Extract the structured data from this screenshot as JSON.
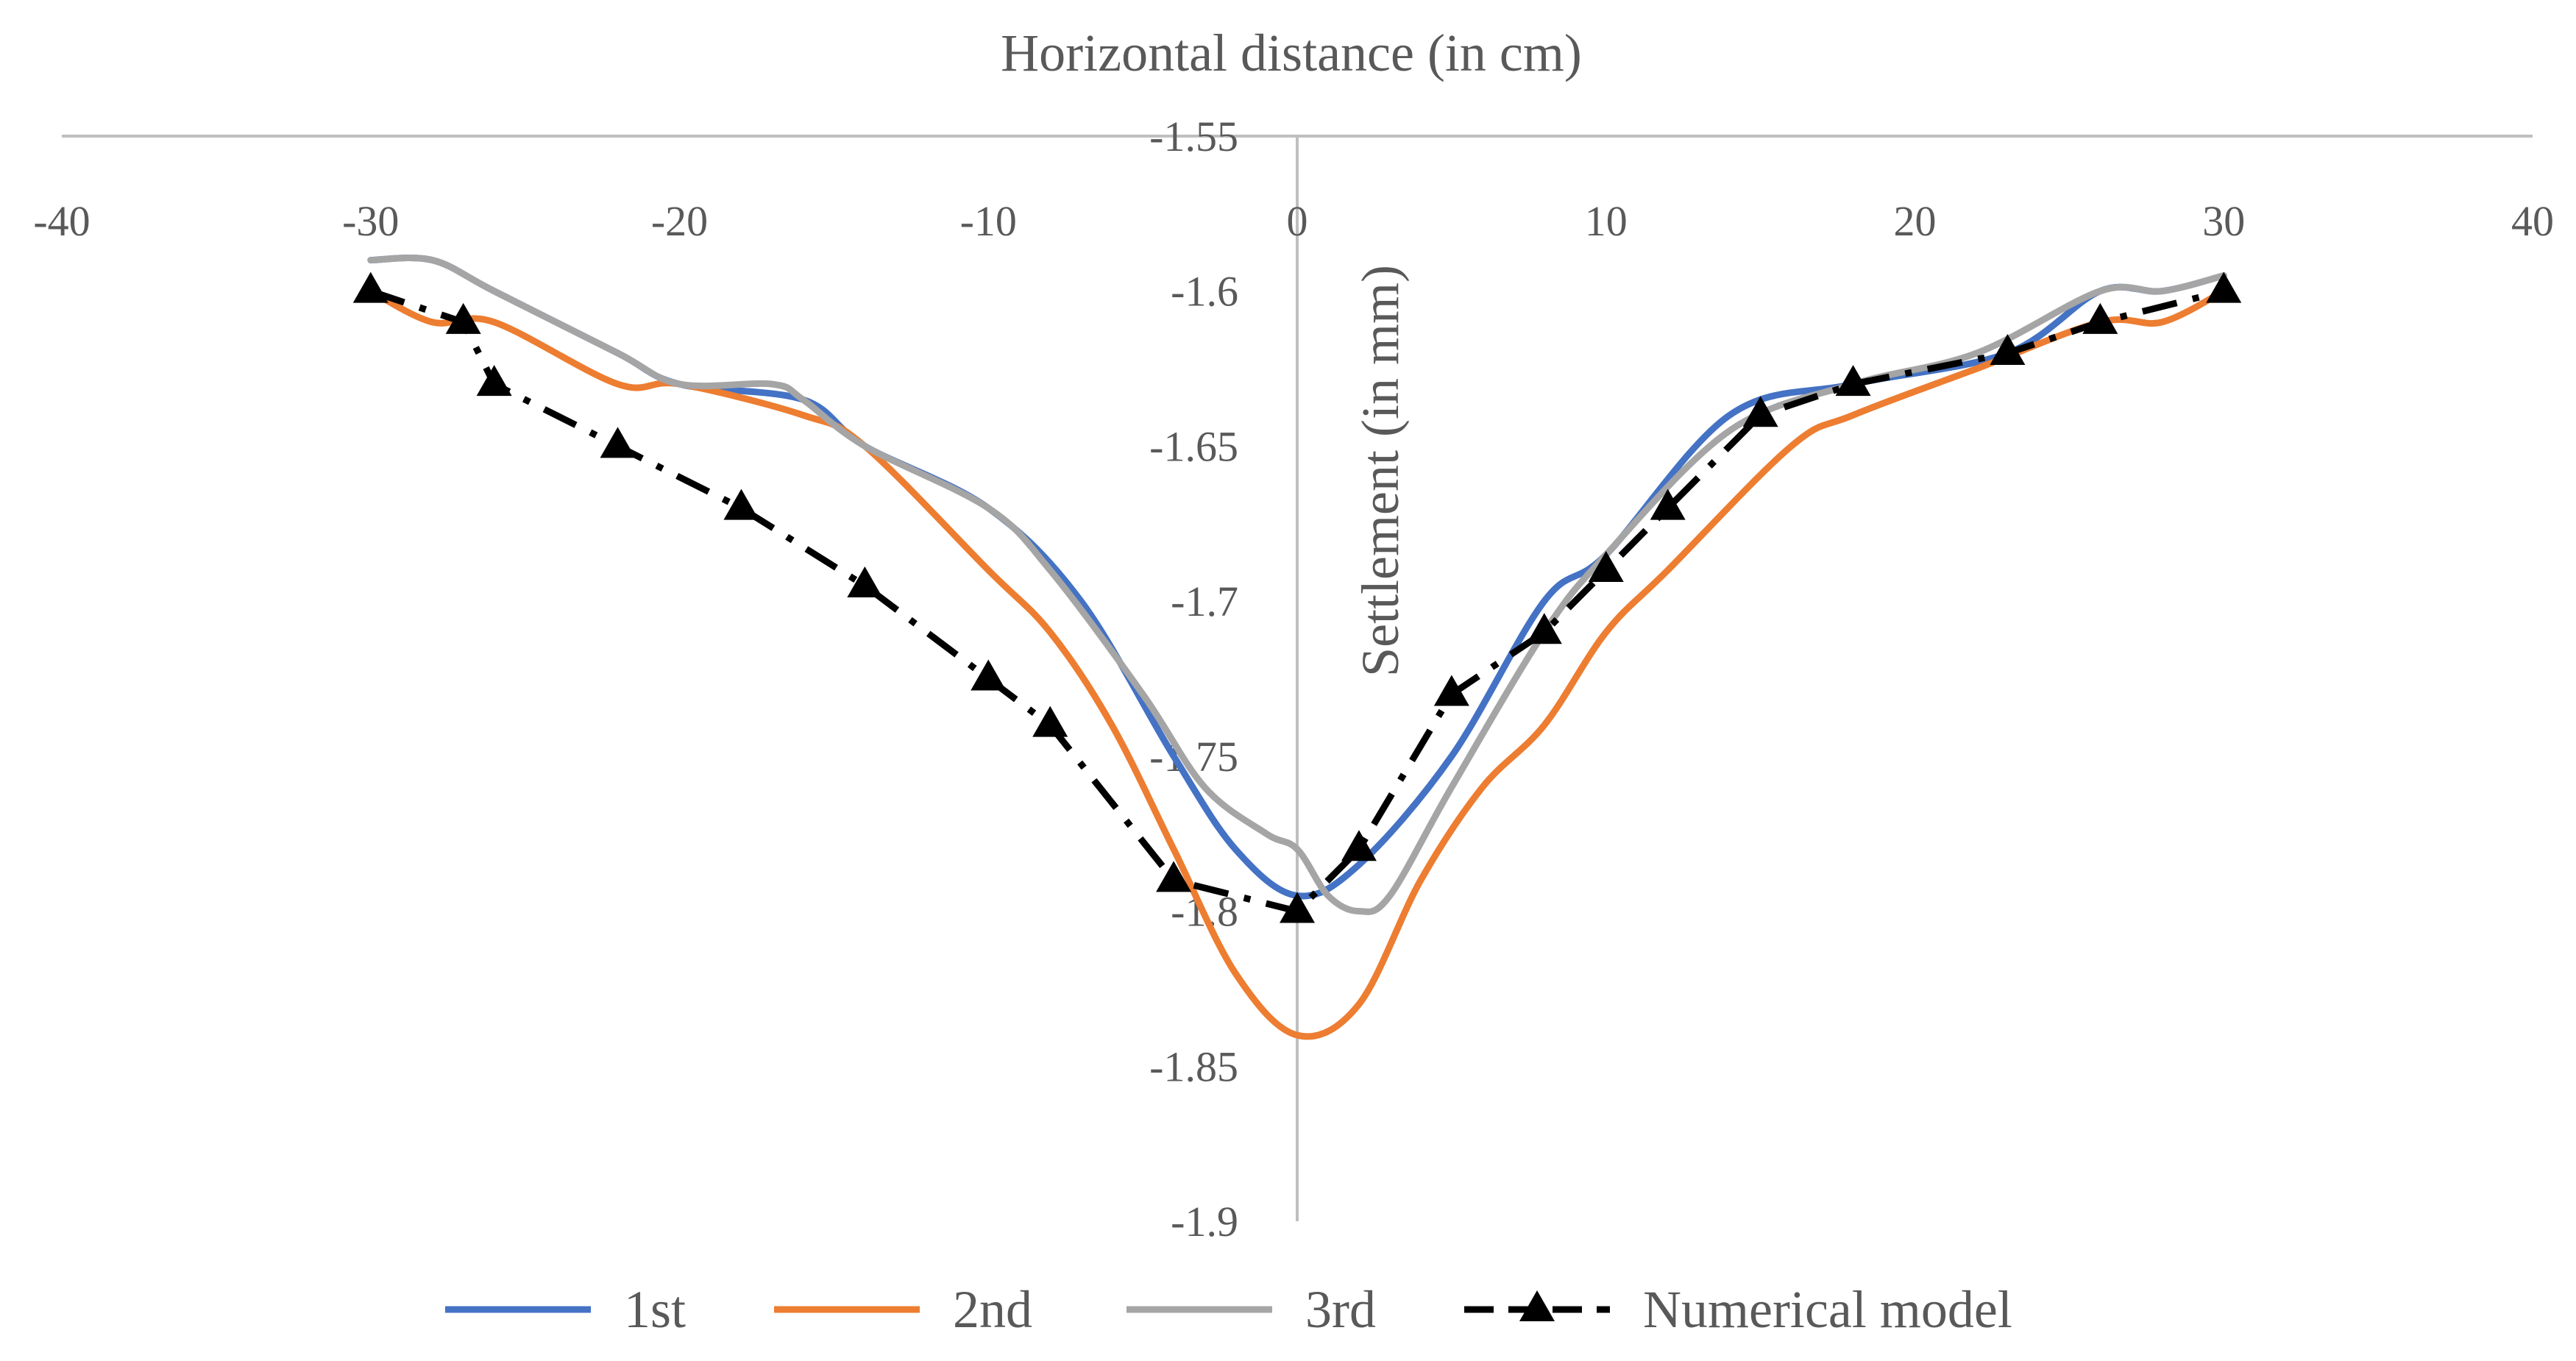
{
  "chart_data": {
    "type": "line",
    "title": "",
    "xlabel": "Horizontal distance (in cm)",
    "ylabel": "Settlement (in mm)",
    "xlim": [
      -40,
      40
    ],
    "ylim": [
      -1.9,
      -1.55
    ],
    "x_ticks": [
      -40,
      -30,
      -20,
      -10,
      0,
      10,
      20,
      30,
      40
    ],
    "x_tick_labels": [
      "-40",
      "-30",
      "-20",
      "-10",
      "0",
      "10",
      "20",
      "30",
      "40"
    ],
    "y_ticks": [
      -1.55,
      -1.6,
      -1.65,
      -1.7,
      -1.75,
      -1.8,
      -1.85,
      -1.9
    ],
    "y_tick_labels": [
      "-1.55",
      "-1.6",
      "-1.65",
      "-1.7",
      "-1.75",
      "-1.8",
      "-1.85",
      "-1.9"
    ],
    "grid": false,
    "legend_position": "bottom",
    "series": [
      {
        "name": "1st",
        "color": "#4472c4",
        "style": "solid",
        "x": [
          -30,
          -28,
          -26,
          -22,
          -20,
          -16,
          -14,
          -10,
          -7,
          -4,
          -2,
          0,
          2,
          5,
          8,
          10,
          14,
          18,
          23,
          26,
          28,
          30
        ],
        "values": [
          -1.59,
          -1.59,
          -1.6,
          -1.62,
          -1.63,
          -1.635,
          -1.65,
          -1.67,
          -1.7,
          -1.75,
          -1.78,
          -1.795,
          -1.785,
          -1.75,
          -1.7,
          -1.685,
          -1.64,
          -1.63,
          -1.62,
          -1.6,
          -1.6,
          -1.595
        ]
      },
      {
        "name": "2nd",
        "color": "#ed7d31",
        "style": "solid",
        "x": [
          -30,
          -28,
          -26,
          -22,
          -20,
          -16,
          -14,
          -10,
          -8,
          -6,
          -4,
          -2,
          0,
          2,
          4,
          6,
          8,
          10,
          12,
          16,
          18,
          22,
          26,
          28,
          30
        ],
        "values": [
          -1.6,
          -1.61,
          -1.61,
          -1.63,
          -1.63,
          -1.64,
          -1.65,
          -1.69,
          -1.71,
          -1.74,
          -1.78,
          -1.82,
          -1.84,
          -1.83,
          -1.79,
          -1.76,
          -1.74,
          -1.71,
          -1.69,
          -1.65,
          -1.64,
          -1.625,
          -1.61,
          -1.61,
          -1.6
        ]
      },
      {
        "name": "3rd",
        "color": "#a5a5a5",
        "style": "solid",
        "x": [
          -30,
          -28,
          -26,
          -22,
          -20,
          -17,
          -16,
          -14,
          -10,
          -8,
          -5,
          -3,
          -1,
          0,
          1,
          2,
          3,
          5,
          8,
          10,
          14,
          18,
          22,
          26,
          28,
          30
        ],
        "values": [
          -1.59,
          -1.59,
          -1.6,
          -1.62,
          -1.63,
          -1.63,
          -1.635,
          -1.65,
          -1.67,
          -1.69,
          -1.73,
          -1.76,
          -1.775,
          -1.78,
          -1.795,
          -1.8,
          -1.795,
          -1.76,
          -1.71,
          -1.685,
          -1.645,
          -1.63,
          -1.62,
          -1.6,
          -1.6,
          -1.595
        ]
      },
      {
        "name": "Numerical model",
        "color": "#000000",
        "style": "dash-dot",
        "marker": "triangle",
        "x": [
          -30,
          -27,
          -26,
          -22,
          -18,
          -14,
          -10,
          -8,
          -4,
          0,
          2,
          5,
          8,
          10,
          12,
          15,
          18,
          23,
          26,
          30
        ],
        "values": [
          -1.6,
          -1.61,
          -1.63,
          -1.65,
          -1.67,
          -1.695,
          -1.725,
          -1.74,
          -1.79,
          -1.8,
          -1.78,
          -1.73,
          -1.71,
          -1.69,
          -1.67,
          -1.64,
          -1.63,
          -1.62,
          -1.61,
          -1.6
        ]
      }
    ]
  }
}
